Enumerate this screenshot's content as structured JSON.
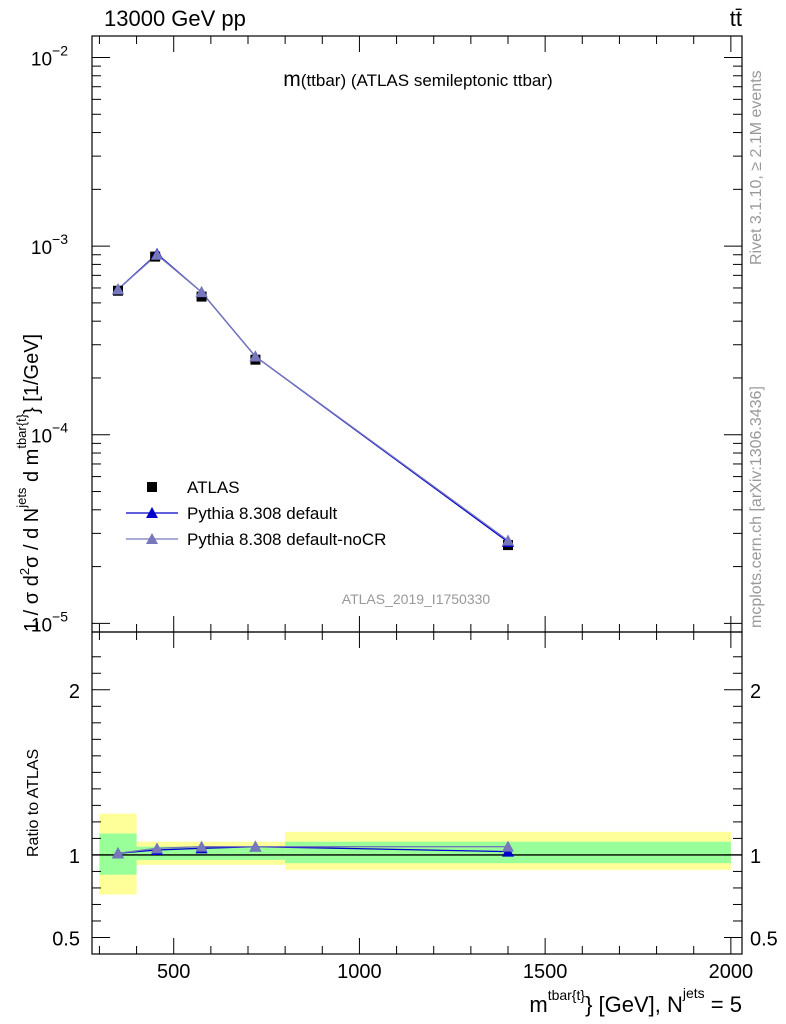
{
  "header": {
    "left": "13000 GeV pp",
    "right": "tt̄"
  },
  "side_text": {
    "rivet": "Rivet 3.1.10, ≥ 2.1M events",
    "mcplots": "mcplots.cern.ch [arXiv:1306.3436]"
  },
  "chart_data": [
    {
      "type": "line",
      "panel": "main",
      "title": "m(ttbar) (ATLAS semileptonic ttbar)",
      "title_main": "m",
      "title_rest": "(ttbar) (ATLAS semileptonic ttbar)",
      "watermark": "ATLAS_2019_I1750330",
      "ylabel": "1 / σ d²σ / d N^{jets} d m^{tbar{t}} [1/GeV]",
      "ylabel_parts": {
        "a": "1 / σ d",
        "b": "2",
        "c": "σ / d N",
        "d": "jets",
        "e": " d m",
        "f": "tbar{t}",
        "g": "} [1/GeV]"
      },
      "yscale": "log",
      "ylim": [
        9e-06,
        0.013
      ],
      "xlim": [
        280,
        2030
      ],
      "y_ticks": [
        {
          "value": 1e-05,
          "base": "10",
          "exp": "−5"
        },
        {
          "value": 0.0001,
          "base": "10",
          "exp": "−4"
        },
        {
          "value": 0.001,
          "base": "10",
          "exp": "−3"
        },
        {
          "value": 0.01,
          "base": "10",
          "exp": "−2"
        }
      ],
      "legend": {
        "position": "lower-left",
        "entries": [
          "ATLAS",
          "Pythia 8.308 default",
          "Pythia 8.308 default-noCR"
        ]
      },
      "series": [
        {
          "name": "ATLAS",
          "marker": "square",
          "color": "#000000",
          "x": [
            350,
            450,
            575,
            720,
            1400
          ],
          "y": [
            0.00058,
            0.00088,
            0.00054,
            0.00025,
            2.6e-05
          ]
        },
        {
          "name": "Pythia 8.308 default",
          "marker": "triangle",
          "color": "#0000cc",
          "x": [
            350,
            455,
            575,
            720,
            1400
          ],
          "y": [
            0.00059,
            0.00091,
            0.00057,
            0.00026,
            2.7e-05
          ]
        },
        {
          "name": "Pythia 8.308 default-noCR",
          "marker": "triangle",
          "color": "#7777bb",
          "x": [
            350,
            455,
            575,
            720,
            1400
          ],
          "y": [
            0.00059,
            0.0009,
            0.00057,
            0.00026,
            2.75e-05
          ]
        }
      ]
    },
    {
      "type": "line",
      "panel": "ratio",
      "ylabel": "Ratio to ATLAS",
      "xlabel": "m^{tbar{t}} [GeV], N^{jets} = 5",
      "xlabel_parts": {
        "a": "m",
        "b": "tbar{t}",
        "c": "} [GeV], N",
        "d": "jets",
        "e": " = 5"
      },
      "xlim": [
        280,
        2030
      ],
      "ylim": [
        0.4,
        2.35
      ],
      "x_ticks": [
        500,
        1000,
        1500,
        2000
      ],
      "y_ticks": [
        {
          "value": 0.5,
          "label": "0.5"
        },
        {
          "value": 1,
          "label": "1"
        },
        {
          "value": 2,
          "label": "2"
        }
      ],
      "bands": [
        {
          "x0": 300,
          "x1": 400,
          "stat": [
            0.88,
            1.13
          ],
          "total": [
            0.76,
            1.25
          ]
        },
        {
          "x0": 400,
          "x1": 800,
          "stat": [
            0.97,
            1.05
          ],
          "total": [
            0.94,
            1.08
          ]
        },
        {
          "x0": 800,
          "x1": 2000,
          "stat": [
            0.95,
            1.08
          ],
          "total": [
            0.91,
            1.14
          ]
        }
      ],
      "series": [
        {
          "name": "Pythia 8.308 default",
          "color": "#0000cc",
          "x": [
            350,
            455,
            575,
            720,
            1400
          ],
          "y": [
            1.01,
            1.03,
            1.04,
            1.05,
            1.02
          ]
        },
        {
          "name": "Pythia 8.308 default-noCR",
          "color": "#7777bb",
          "x": [
            350,
            455,
            575,
            720,
            1400
          ],
          "y": [
            1.01,
            1.04,
            1.05,
            1.05,
            1.05
          ]
        }
      ]
    }
  ]
}
